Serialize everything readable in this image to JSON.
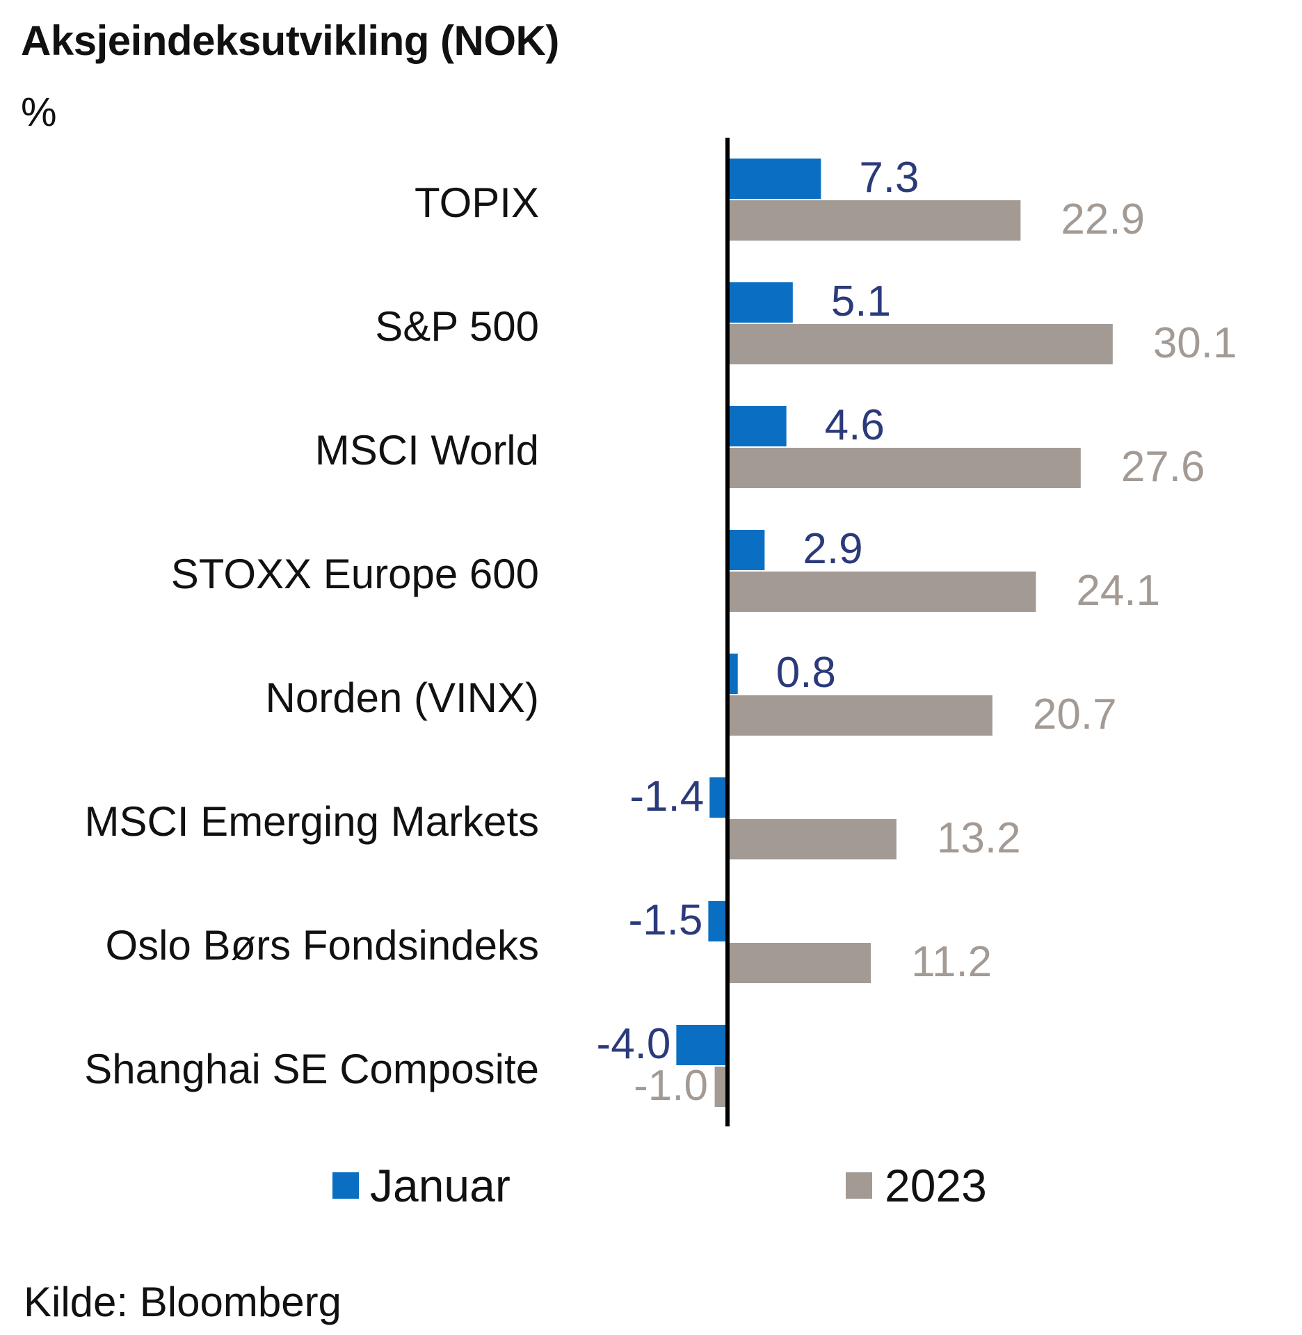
{
  "chart_data": {
    "type": "bar",
    "orientation": "horizontal",
    "title": "Aksjeindeksutvikling (NOK)",
    "unit": "%",
    "categories": [
      "TOPIX",
      "S&P 500",
      "MSCI World",
      "STOXX Europe 600",
      "Norden (VINX)",
      "MSCI Emerging Markets",
      "Oslo Børs Fondsindeks",
      "Shanghai SE Composite"
    ],
    "series": [
      {
        "name": "Januar",
        "color": "#0a6fc2",
        "label_color": "#2b3a7a",
        "values": [
          7.3,
          5.1,
          4.6,
          2.9,
          0.8,
          -1.4,
          -1.5,
          -4.0
        ],
        "labels": [
          "7.3",
          "5.1",
          "4.6",
          "2.9",
          "0.8",
          "-1.4",
          "-1.5",
          "-4.0"
        ]
      },
      {
        "name": "2023",
        "color": "#a39a94",
        "label_color": "#a39a94",
        "values": [
          22.9,
          30.1,
          27.6,
          24.1,
          20.7,
          13.2,
          11.2,
          -1.0
        ],
        "labels": [
          "22.9",
          "30.1",
          "27.6",
          "24.1",
          "20.7",
          "13.2",
          "11.2",
          "-1.0"
        ]
      }
    ],
    "xlim": [
      -4,
      30.1
    ],
    "grid": false,
    "legend_position": "bottom",
    "source": "Kilde: Bloomberg"
  }
}
